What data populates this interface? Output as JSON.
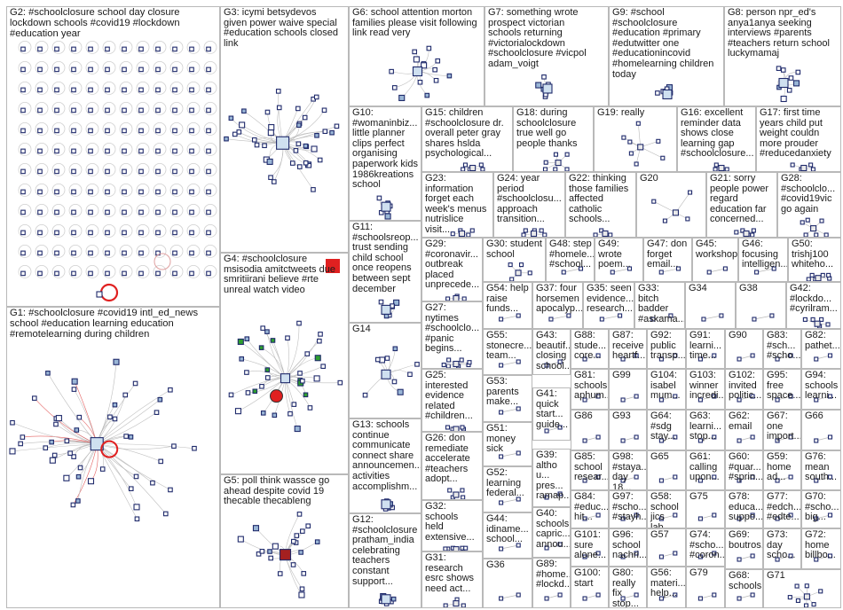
{
  "graph": {
    "groups": [
      {
        "id": "G2",
        "label": "G2: #schoolclosure school day closure\nlockdown schools #covid19 #lockdown\n#education year"
      },
      {
        "id": "G3",
        "label": "G3: icymi betsydevos\ngiven power waive special\n#education schools closed\nlink"
      },
      {
        "id": "G6",
        "label": "G6: school attention morton\nfamilies please visit following\nlink read very"
      },
      {
        "id": "G7",
        "label": "G7: something wrote\nprospect victorian\nschools returning\n#victorialockdown\n#schoolclosure #vicpol\nadam_voigt"
      },
      {
        "id": "G9",
        "label": "G9: #school\n#schoolclosure\n#education #primary\n#edutwitter one\n#educationincovid\n#homelearning children\ntoday"
      },
      {
        "id": "G8",
        "label": "G8: person npr_ed's\nanya1anya seeking\ninterviews #parents\n#teachers return school\nluckymamaj"
      },
      {
        "id": "G10",
        "label": "G10:\n#womaninbiz...\nlittle planner\nclips perfect\norganising\npaperwork kids\n1986kreations\nschool"
      },
      {
        "id": "G15",
        "label": "G15: children\n#schoolclosure dr.\noverall peter gray\nshares hslda\npsychological..."
      },
      {
        "id": "G18",
        "label": "G18: during\nschoolclosure\ntrue well go\npeople thanks"
      },
      {
        "id": "G19",
        "label": "G19: really"
      },
      {
        "id": "G16",
        "label": "G16: excellent\nreminder data\nshows close\nlearning gap\n#schoolclosure..."
      },
      {
        "id": "G17",
        "label": "G17: first time\nyears child put\nweight couldn\nmore prouder\n#reducedanxiety"
      },
      {
        "id": "G23",
        "label": "G23:\ninformation\nforget each\nweek's menus\nnutrislice visit..."
      },
      {
        "id": "G24",
        "label": "G24: year\nperiod\n#schoolclosu...\napproach\ntransition..."
      },
      {
        "id": "G22",
        "label": "G22: thinking\nthose families\naffected\ncatholic\nschools..."
      },
      {
        "id": "G20",
        "label": "G20"
      },
      {
        "id": "G21",
        "label": "G21: sorry\npeople power\nregard\neducation far\nconcerned..."
      },
      {
        "id": "G28",
        "label": "G28:\n#schoolclo...\n#covid19vic\ngo again"
      },
      {
        "id": "G11",
        "label": "G11:\n#schoolsreop...\ntrust sending\nchild school\nonce reopens\nbetween sept\ndecember"
      },
      {
        "id": "G29",
        "label": "G29:\n#coronavir...\noutbreak\nplaced\nunprecede..."
      },
      {
        "id": "G30",
        "label": "G30: student\nschool"
      },
      {
        "id": "G48",
        "label": "G48: step\n#homele...\n#school..."
      },
      {
        "id": "G49",
        "label": "G49:\nwrote\npoem..."
      },
      {
        "id": "G47",
        "label": "G47: don\nforget\nemail..."
      },
      {
        "id": "G45",
        "label": "G45:\nworkshop"
      },
      {
        "id": "G46",
        "label": "G46:\nfocusing\nintelligen..."
      },
      {
        "id": "G50",
        "label": "G50:\ntrishj100\nwhiteho..."
      },
      {
        "id": "G4",
        "label": "G4: #schoolclosure\nmsisodia amitctweets due\nsmritiirani believe #rte\nunreal watch video"
      },
      {
        "id": "G54",
        "label": "G54: help\nraise\nfunds..."
      },
      {
        "id": "G37",
        "label": "G37: four\nhorsemen\napocalyp..."
      },
      {
        "id": "G35",
        "label": "G35: seen\nevidence...\nresearch..."
      },
      {
        "id": "G33",
        "label": "G33: bitch\nbadder\n#askama..."
      },
      {
        "id": "G34",
        "label": "G34"
      },
      {
        "id": "G38",
        "label": "G38"
      },
      {
        "id": "G42",
        "label": "G42:\n#lockdo...\n#cyrilram..."
      },
      {
        "id": "G1",
        "label": "G1: #schoolclosure #covid19 intl_ed_news\nschool #education learning education\n#remotelearning during children"
      },
      {
        "id": "G27",
        "label": "G27:\nnytimes\n#schoolclo...\n#panic\nbegins..."
      },
      {
        "id": "G14",
        "label": "G14"
      },
      {
        "id": "G55",
        "label": "G55:\nstonecre...\nteam..."
      },
      {
        "id": "G43",
        "label": "G43:\nbeautif...\nclosing\nschool..."
      },
      {
        "id": "G88",
        "label": "G88:\nstude...\ncore..."
      },
      {
        "id": "G87",
        "label": "G87:\nreceive\nheartf..."
      },
      {
        "id": "G92",
        "label": "G92:\npublic\ntransp..."
      },
      {
        "id": "G91",
        "label": "G91:\nlearni...\ntime..."
      },
      {
        "id": "G90",
        "label": "G90"
      },
      {
        "id": "G83",
        "label": "G83:\n#sch...\n#scho..."
      },
      {
        "id": "G82",
        "label": "G82:\npathet..."
      },
      {
        "id": "G25",
        "label": "G25:\ninterested\nevidence\nrelated\n#children..."
      },
      {
        "id": "G53",
        "label": "G53:\nparents\nmake..."
      },
      {
        "id": "G81",
        "label": "G81:\nschools\naphum..."
      },
      {
        "id": "G99",
        "label": "G99"
      },
      {
        "id": "G104",
        "label": "G104:\nisabel\nmum..."
      },
      {
        "id": "G103",
        "label": "G103:\nwinner\nincredi..."
      },
      {
        "id": "G102",
        "label": "G102:\ninvited\npolitic..."
      },
      {
        "id": "G95",
        "label": "G95:\nfree\nspace..."
      },
      {
        "id": "G94",
        "label": "G94:\nschools\nlearni..."
      },
      {
        "id": "G41",
        "label": "G41:\nquick\nstart...\nguide..."
      },
      {
        "id": "G86",
        "label": "G86"
      },
      {
        "id": "G93",
        "label": "G93"
      },
      {
        "id": "G64",
        "label": "G64:\n#sdg\nstay..."
      },
      {
        "id": "G63",
        "label": "G63:\nlearni...\nstop..."
      },
      {
        "id": "G62",
        "label": "G62:\nemail"
      },
      {
        "id": "G67",
        "label": "G67:\none\nimport..."
      },
      {
        "id": "G66",
        "label": "G66"
      },
      {
        "id": "G13",
        "label": "G13: schools\ncontinue\ncommunicate\nconnect share\nannouncemen...\nactivities\naccomplishm..."
      },
      {
        "id": "G26",
        "label": "G26: don\nremediate\naccelerate\n#teachers\nadopt..."
      },
      {
        "id": "G51",
        "label": "G51:\nmoney\nsick"
      },
      {
        "id": "G39",
        "label": "G39:\naltho u...\npres...\nramap..."
      },
      {
        "id": "G85",
        "label": "G85:\nschool\nresear..."
      },
      {
        "id": "G98",
        "label": "G98:\n#staya...\nday 18..."
      },
      {
        "id": "G65",
        "label": "G65"
      },
      {
        "id": "G61",
        "label": "G61:\ncalling\nupon..."
      },
      {
        "id": "G60",
        "label": "G60:\n#quar...\n#sprin..."
      },
      {
        "id": "G59",
        "label": "G59:\nhome\nad..."
      },
      {
        "id": "G76",
        "label": "G76:\nmean\nsouth..."
      },
      {
        "id": "G5",
        "label": "G5: poll think wassce go\nahead despite covid 19\nthecable thecableng"
      },
      {
        "id": "G52",
        "label": "G52:\nlearning\nfederal..."
      },
      {
        "id": "G84",
        "label": "G84:\n#educ...\nhit..."
      },
      {
        "id": "G97",
        "label": "G97:\n#scho...\n#stayh..."
      },
      {
        "id": "G58",
        "label": "G58:\nschool\njics lab..."
      },
      {
        "id": "G75",
        "label": "G75"
      },
      {
        "id": "G78",
        "label": "G78:\neduca...\nsuppo..."
      },
      {
        "id": "G77",
        "label": "G77:\n#edch...\n#edte..."
      },
      {
        "id": "G70",
        "label": "G70:\n#scho...\nbig..."
      },
      {
        "id": "G12",
        "label": "G12:\n#schoolclosure\npratham_india\ncelebrating\nteachers\nconstant\nsupport..."
      },
      {
        "id": "G32",
        "label": "G32:\nschools\nheld\nextensive..."
      },
      {
        "id": "G44",
        "label": "G44:\nidiname...\nschool..."
      },
      {
        "id": "G40",
        "label": "G40:\nschools\ncapric...\nannou..."
      },
      {
        "id": "G101",
        "label": "G101:\nsure\nalone..."
      },
      {
        "id": "G96",
        "label": "G96:\nschool\nnachri..."
      },
      {
        "id": "G57",
        "label": "G57"
      },
      {
        "id": "G74",
        "label": "G74:\n#scho...\n#coron..."
      },
      {
        "id": "G69",
        "label": "G69:\nboutros..."
      },
      {
        "id": "G73",
        "label": "G73:\nday\nscho..."
      },
      {
        "id": "G72",
        "label": "G72:\nhome\nbillbo..."
      },
      {
        "id": "G31",
        "label": "G31:\nresearch\nesrc shows\nneed act..."
      },
      {
        "id": "G36",
        "label": "G36"
      },
      {
        "id": "G89",
        "label": "G89:\n#home...\n#lockd..."
      },
      {
        "id": "G100",
        "label": "G100:\nstart"
      },
      {
        "id": "G80",
        "label": "G80:\nreally fix\nstop..."
      },
      {
        "id": "G56",
        "label": "G56:\nmateri...\nhelp..."
      },
      {
        "id": "G79",
        "label": "G79"
      },
      {
        "id": "G68",
        "label": "G68:\nschools..."
      },
      {
        "id": "G71",
        "label": "G71"
      }
    ]
  },
  "colors": {
    "panel_border": "#b9b9b9",
    "edge": "#b8b8b8",
    "edge_highlight": "#e05050",
    "node_border": "#1f2a6b",
    "node_fill": "#ffffff",
    "accent_red": "#e02020",
    "accent_green": "#2e9e2e"
  }
}
